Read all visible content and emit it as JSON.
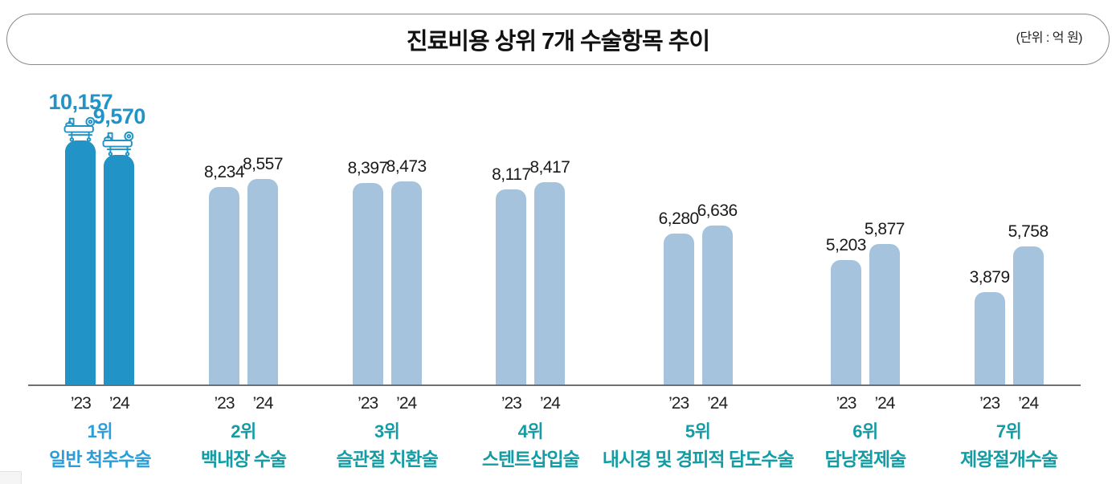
{
  "header": {
    "title": "진료비용 상위 7개 수술항목 추이",
    "unit_label": "(단위 : 억 원)"
  },
  "colors": {
    "highlight_bar": "#2193c6",
    "regular_bar": "#a5c3dc",
    "highlight_value_label": "#2193c6",
    "highlight_group_label": "#2b9dd8",
    "teal_group_label": "#149ca4",
    "value_label": "#1a1a1a",
    "year_label": "#222222",
    "axis_line": "#6f6f6f"
  },
  "chart_data": {
    "type": "bar",
    "title": "진료비용 상위 7개 수술항목 추이",
    "unit": "억 원",
    "categories": [
      "’23",
      "’24"
    ],
    "ylim": [
      0,
      10157
    ],
    "grid": false,
    "legend": "none",
    "groups": [
      {
        "rank": "1위",
        "name": "일반 척추수술",
        "values": [
          10157,
          9570
        ],
        "display_values": [
          "10,157",
          "9,570"
        ],
        "highlight": true,
        "icon": "operating-table-icon"
      },
      {
        "rank": "2위",
        "name": "백내장 수술",
        "values": [
          8234,
          8557
        ],
        "display_values": [
          "8,234",
          "8,557"
        ],
        "highlight": false
      },
      {
        "rank": "3위",
        "name": "슬관절 치환술",
        "values": [
          8397,
          8473
        ],
        "display_values": [
          "8,397",
          "8,473"
        ],
        "highlight": false
      },
      {
        "rank": "4위",
        "name": "스텐트삽입술",
        "values": [
          8117,
          8417
        ],
        "display_values": [
          "8,117",
          "8,417"
        ],
        "highlight": false
      },
      {
        "rank": "5위",
        "name": "내시경 및 경피적 담도수술",
        "values": [
          6280,
          6636
        ],
        "display_values": [
          "6,280",
          "6,636"
        ],
        "highlight": false
      },
      {
        "rank": "6위",
        "name": "담낭절제술",
        "values": [
          5203,
          5877
        ],
        "display_values": [
          "5,203",
          "5,877"
        ],
        "highlight": false
      },
      {
        "rank": "7위",
        "name": "제왕절개수술",
        "values": [
          3879,
          5758
        ],
        "display_values": [
          "3,879",
          "5,758"
        ],
        "highlight": false
      }
    ]
  }
}
